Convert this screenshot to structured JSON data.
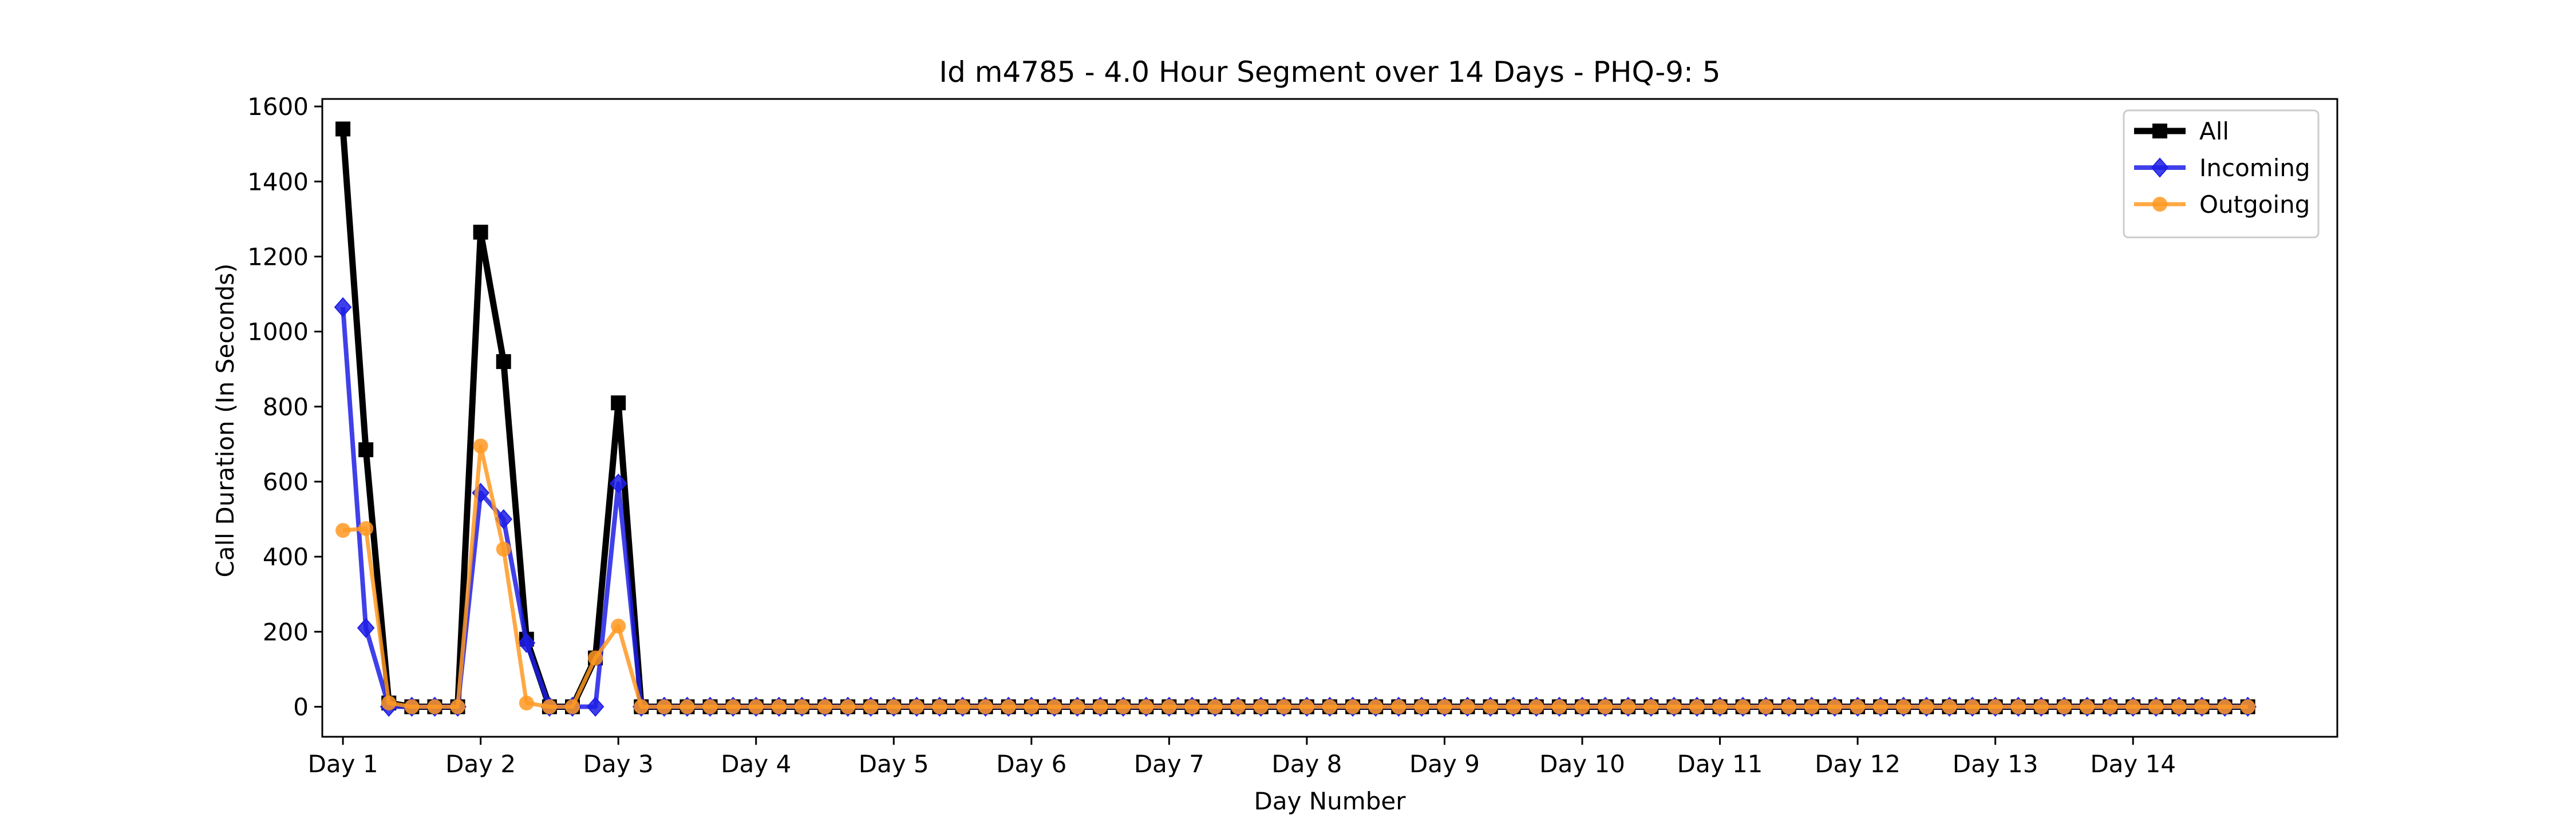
{
  "chart_data": {
    "type": "line",
    "title": "Id m4785 - 4.0 Hour Segment over 14 Days - PHQ-9: 5",
    "xlabel": "Day Number",
    "ylabel": "Call Duration (In Seconds)",
    "xlim": [
      -0.9,
      86.9
    ],
    "ylim": [
      -80,
      1620
    ],
    "y_ticks": [
      0,
      200,
      400,
      600,
      800,
      1000,
      1200,
      1400,
      1600
    ],
    "x_ticks": [
      0,
      6,
      12,
      18,
      24,
      30,
      36,
      42,
      48,
      54,
      60,
      66,
      72,
      78
    ],
    "x_tick_labels": [
      "Day 1",
      "Day 2",
      "Day 3",
      "Day 4",
      "Day 5",
      "Day 6",
      "Day 7",
      "Day 8",
      "Day 9",
      "Day 10",
      "Day 11",
      "Day 12",
      "Day 13",
      "Day 14"
    ],
    "grid": false,
    "legend": "top-right",
    "series": [
      {
        "name": "All",
        "color": "#000000",
        "marker": "square",
        "values": [
          1540,
          685,
          10,
          0,
          0,
          0,
          1265,
          920,
          180,
          0,
          0,
          130,
          810,
          0,
          0,
          0,
          0,
          0,
          0,
          0,
          0,
          0,
          0,
          0,
          0,
          0,
          0,
          0,
          0,
          0,
          0,
          0,
          0,
          0,
          0,
          0,
          0,
          0,
          0,
          0,
          0,
          0,
          0,
          0,
          0,
          0,
          0,
          0,
          0,
          0,
          0,
          0,
          0,
          0,
          0,
          0,
          0,
          0,
          0,
          0,
          0,
          0,
          0,
          0,
          0,
          0,
          0,
          0,
          0,
          0,
          0,
          0,
          0,
          0,
          0,
          0,
          0,
          0,
          0,
          0,
          0,
          0,
          0,
          0
        ]
      },
      {
        "name": "Incoming",
        "color": "#1f1fe6",
        "marker": "diamond",
        "values": [
          1065,
          210,
          0,
          0,
          0,
          0,
          570,
          500,
          170,
          0,
          0,
          0,
          595,
          0,
          0,
          0,
          0,
          0,
          0,
          0,
          0,
          0,
          0,
          0,
          0,
          0,
          0,
          0,
          0,
          0,
          0,
          0,
          0,
          0,
          0,
          0,
          0,
          0,
          0,
          0,
          0,
          0,
          0,
          0,
          0,
          0,
          0,
          0,
          0,
          0,
          0,
          0,
          0,
          0,
          0,
          0,
          0,
          0,
          0,
          0,
          0,
          0,
          0,
          0,
          0,
          0,
          0,
          0,
          0,
          0,
          0,
          0,
          0,
          0,
          0,
          0,
          0,
          0,
          0,
          0,
          0,
          0,
          0,
          0
        ]
      },
      {
        "name": "Outgoing",
        "color": "#ff9922",
        "marker": "circle",
        "values": [
          470,
          475,
          10,
          0,
          0,
          0,
          695,
          420,
          10,
          0,
          0,
          130,
          215,
          0,
          0,
          0,
          0,
          0,
          0,
          0,
          0,
          0,
          0,
          0,
          0,
          0,
          0,
          0,
          0,
          0,
          0,
          0,
          0,
          0,
          0,
          0,
          0,
          0,
          0,
          0,
          0,
          0,
          0,
          0,
          0,
          0,
          0,
          0,
          0,
          0,
          0,
          0,
          0,
          0,
          0,
          0,
          0,
          0,
          0,
          0,
          0,
          0,
          0,
          0,
          0,
          0,
          0,
          0,
          0,
          0,
          0,
          0,
          0,
          0,
          0,
          0,
          0,
          0,
          0,
          0,
          0,
          0,
          0,
          0
        ]
      }
    ]
  }
}
